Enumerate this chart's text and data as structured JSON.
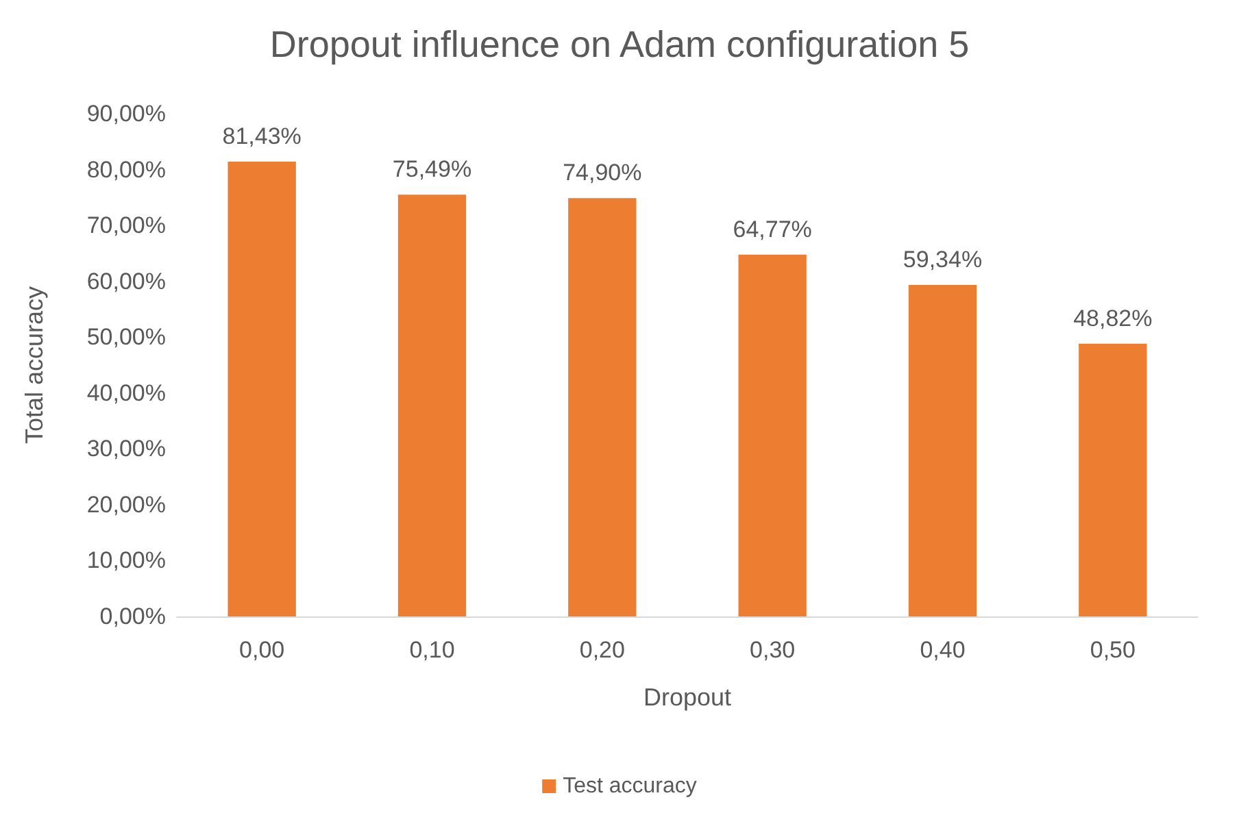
{
  "chart_data": {
    "type": "bar",
    "title": "Dropout influence on Adam configuration 5",
    "xlabel": "Dropout",
    "ylabel": "Total accuracy",
    "categories": [
      "0,00",
      "0,10",
      "0,20",
      "0,30",
      "0,40",
      "0,50"
    ],
    "series": [
      {
        "name": "Test accuracy",
        "color": "#ed7d31",
        "values": [
          81.43,
          75.49,
          74.9,
          64.77,
          59.34,
          48.82
        ],
        "value_labels": [
          "81,43%",
          "75,49%",
          "74,90%",
          "64,77%",
          "59,34%",
          "48,82%"
        ]
      }
    ],
    "ylim": [
      0,
      90
    ],
    "yticks": [
      {
        "value": 0,
        "label": "0,00%"
      },
      {
        "value": 10,
        "label": "10,00%"
      },
      {
        "value": 20,
        "label": "20,00%"
      },
      {
        "value": 30,
        "label": "30,00%"
      },
      {
        "value": 40,
        "label": "40,00%"
      },
      {
        "value": 50,
        "label": "50,00%"
      },
      {
        "value": 60,
        "label": "60,00%"
      },
      {
        "value": 70,
        "label": "70,00%"
      },
      {
        "value": 80,
        "label": "80,00%"
      },
      {
        "value": 90,
        "label": "90,00%"
      }
    ],
    "grid": false,
    "legend": "bottom"
  }
}
